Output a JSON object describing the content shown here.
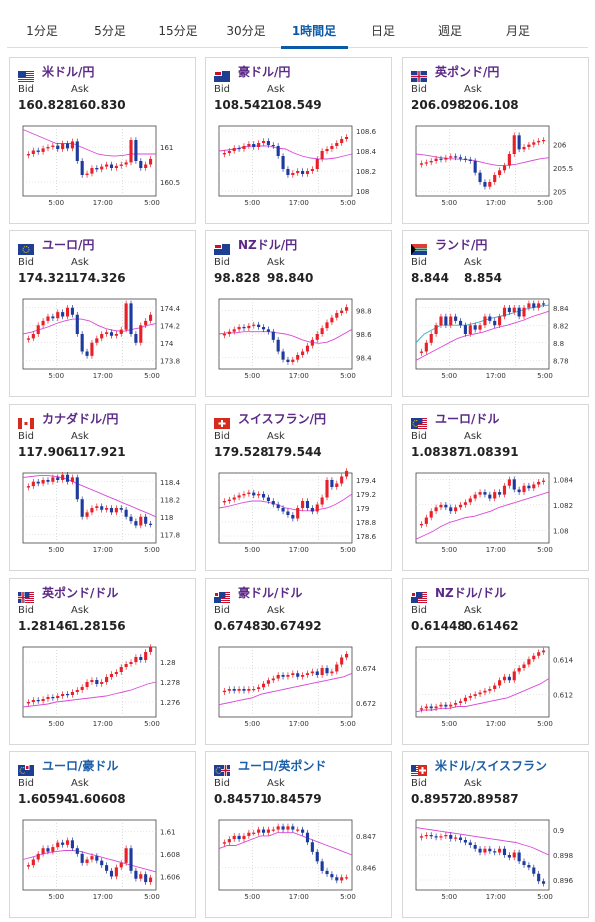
{
  "tabs": [
    "1分足",
    "5分足",
    "15分足",
    "30分足",
    "1時間足",
    "日足",
    "週足",
    "月足"
  ],
  "active_tab": 4,
  "labels": {
    "bid": "Bid",
    "ask": "Ask"
  },
  "colors": {
    "pair_text": "#5b2a86",
    "pair_text_alt": "#1b5ea8",
    "up": "#e8202a",
    "down": "#1f3a9e",
    "ma": "#d94ad8",
    "ma2": "#2ab0c8",
    "tab_active": "#0b5aa8"
  },
  "cards": [
    {
      "pair": "米ドル/円",
      "flag": "us-flag-icon",
      "bid": "160.828",
      "ask": "160.830",
      "chart_data": {
        "type": "candlestick",
        "x_ticks": [
          "5:00",
          "17:00",
          "5:00"
        ],
        "y_ticks": [
          "161",
          "160.5"
        ],
        "ylim": [
          160.3,
          161.3
        ],
        "closes": [
          160.9,
          160.95,
          160.93,
          160.98,
          161.0,
          161.02,
          160.97,
          161.05,
          160.98,
          161.08,
          160.8,
          160.6,
          160.62,
          160.7,
          160.68,
          160.72,
          160.75,
          160.7,
          160.73,
          160.75,
          160.78,
          161.1,
          160.8,
          160.7,
          160.75,
          160.83
        ],
        "ma": [
          161.25,
          161.2,
          161.15,
          161.1,
          161.05,
          161.05,
          161.05,
          161.0,
          160.95,
          160.9,
          160.88,
          160.87,
          160.88,
          160.9,
          160.9,
          160.9,
          160.9
        ]
      }
    },
    {
      "pair": "豪ドル/円",
      "flag": "au-flag-icon",
      "bid": "108.542",
      "ask": "108.549",
      "chart_data": {
        "type": "candlestick",
        "x_ticks": [
          "5:00",
          "17:00",
          "5:00"
        ],
        "y_ticks": [
          "108.6",
          "108.4",
          "108.2",
          "108"
        ],
        "ylim": [
          107.95,
          108.65
        ],
        "closes": [
          108.38,
          108.4,
          108.43,
          108.42,
          108.45,
          108.47,
          108.44,
          108.48,
          108.5,
          108.46,
          108.45,
          108.35,
          108.22,
          108.16,
          108.18,
          108.2,
          108.17,
          108.2,
          108.22,
          108.32,
          108.4,
          108.42,
          108.45,
          108.48,
          108.52,
          108.54
        ],
        "ma": [
          108.4,
          108.41,
          108.42,
          108.44,
          108.45,
          108.45,
          108.45,
          108.43,
          108.42,
          108.38,
          108.35,
          108.33,
          108.32,
          108.32,
          108.33,
          108.35,
          108.37
        ]
      }
    },
    {
      "pair": "英ポンド/円",
      "flag": "uk-flag-icon",
      "bid": "206.098",
      "ask": "206.108",
      "chart_data": {
        "type": "candlestick",
        "x_ticks": [
          "5:00",
          "17:00",
          "5:00"
        ],
        "y_ticks": [
          "206",
          "205.5",
          "205"
        ],
        "ylim": [
          204.9,
          206.4
        ],
        "closes": [
          205.6,
          205.62,
          205.65,
          205.7,
          205.68,
          205.72,
          205.75,
          205.73,
          205.7,
          205.68,
          205.65,
          205.4,
          205.2,
          205.1,
          205.2,
          205.35,
          205.45,
          205.55,
          205.8,
          206.2,
          205.9,
          205.95,
          206.0,
          206.05,
          206.08,
          206.1
        ],
        "ma": [
          205.8,
          205.78,
          205.75,
          205.72,
          205.7,
          205.69,
          205.68,
          205.66,
          205.62,
          205.58,
          205.55,
          205.56,
          205.58,
          205.62,
          205.66,
          205.7,
          205.72
        ]
      }
    },
    {
      "pair": "ユーロ/円",
      "flag": "eu-flag-icon",
      "bid": "174.321",
      "ask": "174.326",
      "chart_data": {
        "type": "candlestick",
        "x_ticks": [
          "5:00",
          "17:00",
          "5:00"
        ],
        "y_ticks": [
          "174.4",
          "174.2",
          "174",
          "173.8"
        ],
        "ylim": [
          173.7,
          174.5
        ],
        "closes": [
          174.05,
          174.1,
          174.2,
          174.25,
          174.3,
          174.28,
          174.35,
          174.3,
          174.4,
          174.32,
          174.1,
          173.9,
          173.85,
          174.0,
          174.05,
          174.1,
          174.12,
          174.08,
          174.1,
          174.15,
          174.45,
          174.1,
          174.0,
          174.2,
          174.25,
          174.32
        ],
        "ma": [
          174.1,
          174.12,
          174.15,
          174.18,
          174.22,
          174.25,
          174.27,
          174.27,
          174.25,
          174.2,
          174.16,
          174.14,
          174.13,
          174.15,
          174.17,
          174.2,
          174.22
        ]
      }
    },
    {
      "pair": "NZドル/円",
      "flag": "nz-flag-icon",
      "bid": "98.828",
      "ask": "98.840",
      "chart_data": {
        "type": "candlestick",
        "x_ticks": [
          "5:00",
          "17:00",
          "5:00"
        ],
        "y_ticks": [
          "98.8",
          "98.6",
          "98.4"
        ],
        "ylim": [
          98.3,
          98.9
        ],
        "closes": [
          98.6,
          98.62,
          98.64,
          98.66,
          98.65,
          98.67,
          98.68,
          98.66,
          98.64,
          98.62,
          98.55,
          98.45,
          98.38,
          98.36,
          98.38,
          98.42,
          98.45,
          98.5,
          98.55,
          98.6,
          98.65,
          98.7,
          98.74,
          98.78,
          98.8,
          98.83
        ],
        "ma": [
          98.6,
          98.61,
          98.61,
          98.62,
          98.62,
          98.62,
          98.62,
          98.61,
          98.6,
          98.58,
          98.55,
          98.53,
          98.52,
          98.53,
          98.56,
          98.6,
          98.64
        ]
      }
    },
    {
      "pair": "ランド/円",
      "flag": "za-flag-icon",
      "bid": "8.844",
      "ask": "8.854",
      "chart_data": {
        "type": "candlestick",
        "x_ticks": [
          "5:00",
          "17:00",
          "5:00"
        ],
        "y_ticks": [
          "8.84",
          "8.82",
          "8.8",
          "8.78"
        ],
        "ylim": [
          8.77,
          8.85
        ],
        "closes": [
          8.79,
          8.8,
          8.81,
          8.82,
          8.83,
          8.82,
          8.83,
          8.825,
          8.82,
          8.81,
          8.82,
          8.815,
          8.82,
          8.83,
          8.825,
          8.82,
          8.83,
          8.84,
          8.835,
          8.84,
          8.83,
          8.84,
          8.845,
          8.84,
          8.845,
          8.844
        ],
        "ma": [
          8.78,
          8.785,
          8.79,
          8.795,
          8.8,
          8.805,
          8.808,
          8.81,
          8.812,
          8.815,
          8.818,
          8.82,
          8.823,
          8.826,
          8.83,
          8.833,
          8.836
        ],
        "ma2": [
          8.8,
          8.81,
          8.815,
          8.82,
          8.82,
          8.82,
          8.82,
          8.822,
          8.825,
          8.828,
          8.83,
          8.832,
          8.835,
          8.838,
          8.84,
          8.842,
          8.843
        ]
      }
    },
    {
      "pair": "カナダドル/円",
      "flag": "ca-flag-icon",
      "bid": "117.906",
      "ask": "117.921",
      "chart_data": {
        "type": "candlestick",
        "x_ticks": [
          "5:00",
          "17:00",
          "5:00"
        ],
        "y_ticks": [
          "118.4",
          "118.2",
          "118",
          "117.8"
        ],
        "ylim": [
          117.7,
          118.5
        ],
        "closes": [
          118.35,
          118.4,
          118.38,
          118.42,
          118.4,
          118.45,
          118.42,
          118.48,
          118.4,
          118.45,
          118.2,
          118.0,
          118.05,
          118.1,
          118.12,
          118.08,
          118.1,
          118.05,
          118.1,
          118.08,
          118.0,
          117.95,
          117.9,
          118.0,
          117.92,
          117.91
        ],
        "ma": [
          118.45,
          118.46,
          118.47,
          118.47,
          118.46,
          118.44,
          118.4,
          118.36,
          118.32,
          118.28,
          118.24,
          118.2,
          118.16,
          118.12,
          118.08,
          118.04,
          118.0
        ]
      }
    },
    {
      "pair": "スイスフラン/円",
      "flag": "ch-flag-icon",
      "bid": "179.528",
      "ask": "179.544",
      "chart_data": {
        "type": "candlestick",
        "x_ticks": [
          "5:00",
          "17:00",
          "5:00"
        ],
        "y_ticks": [
          "179.4",
          "179.2",
          "179",
          "178.8",
          "178.6"
        ],
        "ylim": [
          178.5,
          179.5
        ],
        "closes": [
          179.1,
          179.12,
          179.15,
          179.18,
          179.2,
          179.22,
          179.18,
          179.2,
          179.15,
          179.1,
          179.05,
          179.0,
          178.95,
          178.9,
          178.85,
          179.0,
          179.1,
          179.0,
          178.95,
          179.05,
          179.15,
          179.4,
          179.3,
          179.35,
          179.45,
          179.53
        ],
        "ma": [
          179.0,
          179.02,
          179.05,
          179.08,
          179.1,
          179.1,
          179.08,
          179.05,
          179.0,
          178.98,
          178.96,
          178.96,
          178.98,
          179.0,
          179.05,
          179.12,
          179.2
        ]
      }
    },
    {
      "pair": "ユーロ/ドル",
      "flag": "eu-us-flag-icon",
      "bid": "1.08387",
      "ask": "1.08391",
      "chart_data": {
        "type": "candlestick",
        "x_ticks": [
          "5:00",
          "17:00",
          "5:00"
        ],
        "y_ticks": [
          "1.084",
          "1.082",
          "1.08"
        ],
        "ylim": [
          1.079,
          1.0845
        ],
        "closes": [
          1.0805,
          1.081,
          1.0815,
          1.0818,
          1.082,
          1.0818,
          1.0815,
          1.0818,
          1.082,
          1.0822,
          1.0825,
          1.0828,
          1.083,
          1.0828,
          1.0825,
          1.083,
          1.0828,
          1.0835,
          1.084,
          1.0832,
          1.083,
          1.0835,
          1.0833,
          1.0836,
          1.0838,
          1.0839
        ],
        "ma": [
          1.0793,
          1.0796,
          1.0799,
          1.0803,
          1.0806,
          1.0808,
          1.081,
          1.0811,
          1.0813,
          1.0815,
          1.0818,
          1.082,
          1.0822,
          1.0824,
          1.0826,
          1.0828,
          1.083
        ]
      }
    },
    {
      "pair": "英ポンド/ドル",
      "flag": "uk-us-flag-icon",
      "bid": "1.28146",
      "ask": "1.28156",
      "chart_data": {
        "type": "candlestick",
        "x_ticks": [
          "5:00",
          "17:00",
          "5:00"
        ],
        "y_ticks": [
          "1.28",
          "1.278",
          "1.276"
        ],
        "ylim": [
          1.2745,
          1.2815
        ],
        "closes": [
          1.276,
          1.2762,
          1.2761,
          1.2763,
          1.2765,
          1.2764,
          1.2766,
          1.2768,
          1.2767,
          1.277,
          1.2772,
          1.2775,
          1.278,
          1.2782,
          1.2778,
          1.278,
          1.2785,
          1.2788,
          1.279,
          1.2795,
          1.2798,
          1.28,
          1.2805,
          1.2802,
          1.281,
          1.2815
        ],
        "ma": [
          1.2755,
          1.2756,
          1.2757,
          1.2758,
          1.276,
          1.2761,
          1.2762,
          1.2763,
          1.2764,
          1.2765,
          1.2766,
          1.2768,
          1.277,
          1.2772,
          1.2775,
          1.2778,
          1.278
        ]
      }
    },
    {
      "pair": "豪ドル/ドル",
      "flag": "au-us-flag-icon",
      "bid": "0.67483",
      "ask": "0.67492",
      "chart_data": {
        "type": "candlestick",
        "x_ticks": [
          "5:00",
          "17:00",
          "5:00"
        ],
        "y_ticks": [
          "0.674",
          "0.672"
        ],
        "ylim": [
          0.6712,
          0.6752
        ],
        "closes": [
          0.6727,
          0.6728,
          0.6727,
          0.6728,
          0.6727,
          0.6728,
          0.6728,
          0.6729,
          0.6731,
          0.6733,
          0.6734,
          0.6736,
          0.6735,
          0.6736,
          0.6737,
          0.6735,
          0.6736,
          0.6737,
          0.6738,
          0.6736,
          0.674,
          0.6737,
          0.6738,
          0.6742,
          0.6746,
          0.6748
        ],
        "ma": [
          0.6719,
          0.672,
          0.6721,
          0.6722,
          0.6723,
          0.6725,
          0.6726,
          0.6727,
          0.6728,
          0.6729,
          0.673,
          0.6731,
          0.6732,
          0.6733,
          0.6734,
          0.6735,
          0.6737
        ]
      }
    },
    {
      "pair": "NZドル/ドル",
      "flag": "nz-us-flag-icon",
      "bid": "0.61448",
      "ask": "0.61462",
      "chart_data": {
        "type": "candlestick",
        "x_ticks": [
          "5:00",
          "17:00",
          "5:00"
        ],
        "y_ticks": [
          "0.614",
          "0.612"
        ],
        "ylim": [
          0.6107,
          0.6147
        ],
        "closes": [
          0.6112,
          0.6113,
          0.6112,
          0.6113,
          0.6114,
          0.6113,
          0.6114,
          0.6115,
          0.6116,
          0.6118,
          0.6119,
          0.612,
          0.6121,
          0.6122,
          0.6123,
          0.6125,
          0.6128,
          0.613,
          0.6128,
          0.6133,
          0.6135,
          0.6137,
          0.614,
          0.6142,
          0.6144,
          0.6145
        ],
        "ma": [
          0.611,
          0.6111,
          0.6111,
          0.6112,
          0.6112,
          0.6113,
          0.6113,
          0.6114,
          0.6115,
          0.6116,
          0.6117,
          0.6118,
          0.612,
          0.6122,
          0.6124,
          0.6126,
          0.6129
        ]
      }
    },
    {
      "pair": "ユーロ/豪ドル",
      "flag": "eu-au-flag-icon",
      "bid": "1.60594",
      "ask": "1.60608",
      "chart_data": {
        "type": "candlestick",
        "x_ticks": [
          "5:00",
          "17:00",
          "5:00"
        ],
        "y_ticks": [
          "1.61",
          "1.608",
          "1.606"
        ],
        "ylim": [
          1.6048,
          1.611
        ],
        "closes": [
          1.607,
          1.6075,
          1.608,
          1.6085,
          1.6082,
          1.6086,
          1.609,
          1.6088,
          1.6092,
          1.6085,
          1.608,
          1.6072,
          1.6075,
          1.6078,
          1.6074,
          1.607,
          1.6065,
          1.606,
          1.6068,
          1.6072,
          1.6085,
          1.6065,
          1.6058,
          1.6062,
          1.6055,
          1.6059
        ],
        "ma": [
          1.6075,
          1.6077,
          1.6079,
          1.6081,
          1.6082,
          1.6083,
          1.6083,
          1.6082,
          1.608,
          1.6078,
          1.6076,
          1.6074,
          1.6072,
          1.607,
          1.6068,
          1.6066,
          1.6064
        ]
      }
    },
    {
      "pair": "ユーロ/英ポンド",
      "flag": "eu-uk-flag-icon",
      "bid": "0.84571",
      "ask": "0.84579",
      "chart_data": {
        "type": "candlestick",
        "x_ticks": [
          "5:00",
          "17:00",
          "5:00"
        ],
        "y_ticks": [
          "0.847",
          "0.846"
        ],
        "ylim": [
          0.8453,
          0.8475
        ],
        "closes": [
          0.8468,
          0.8469,
          0.847,
          0.8469,
          0.847,
          0.8471,
          0.8471,
          0.8472,
          0.8471,
          0.8472,
          0.8472,
          0.8473,
          0.8472,
          0.8473,
          0.8472,
          0.8472,
          0.8471,
          0.8468,
          0.8465,
          0.8462,
          0.8459,
          0.8458,
          0.8457,
          0.8456,
          0.8457,
          0.8457
        ],
        "ma": [
          0.8466,
          0.8467,
          0.8467,
          0.8468,
          0.8469,
          0.847,
          0.847,
          0.8471,
          0.8471,
          0.8471,
          0.847,
          0.8469,
          0.8468,
          0.8467,
          0.8466,
          0.8465,
          0.8464
        ]
      }
    },
    {
      "pair": "米ドル/スイスフラン",
      "flag": "us-ch-flag-icon",
      "bid": "0.89572",
      "ask": "0.89587",
      "chart_data": {
        "type": "candlestick",
        "x_ticks": [
          "5:00",
          "17:00",
          "5:00"
        ],
        "y_ticks": [
          "0.9",
          "0.898",
          "0.896"
        ],
        "ylim": [
          0.8952,
          0.9008
        ],
        "closes": [
          0.8995,
          0.8996,
          0.8995,
          0.8994,
          0.8995,
          0.8996,
          0.8993,
          0.8994,
          0.8992,
          0.899,
          0.8988,
          0.8985,
          0.8982,
          0.8985,
          0.8983,
          0.8982,
          0.8985,
          0.898,
          0.8978,
          0.8982,
          0.8975,
          0.8972,
          0.897,
          0.8965,
          0.8959,
          0.8957
        ],
        "ma": [
          0.9002,
          0.9001,
          0.9,
          0.8999,
          0.8998,
          0.8997,
          0.8996,
          0.8995,
          0.8994,
          0.8993,
          0.8992,
          0.8991,
          0.899,
          0.8988,
          0.8986,
          0.8983,
          0.898
        ]
      }
    }
  ]
}
